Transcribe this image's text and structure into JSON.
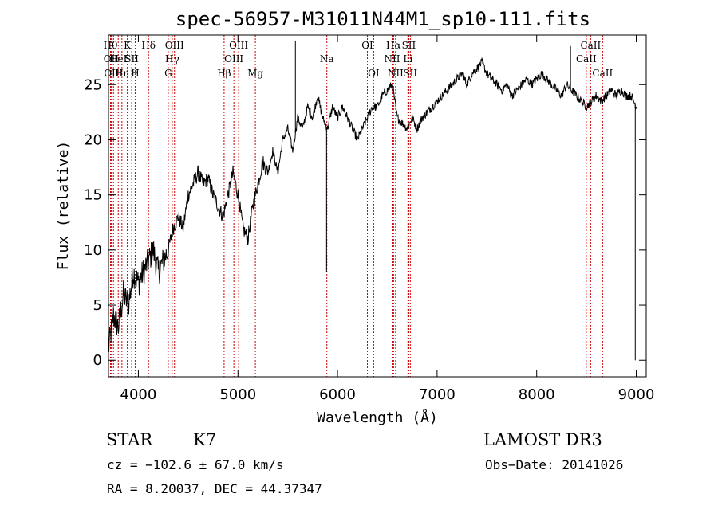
{
  "chart_data": {
    "type": "line",
    "title": "spec-56957-M31011N44M1_sp10-111.fits",
    "xlabel": "Wavelength (Å)",
    "ylabel": "Flux (relative)",
    "xlim": [
      3700,
      9100
    ],
    "ylim": [
      -1.5,
      29.5
    ],
    "xticks": [
      4000,
      5000,
      6000,
      7000,
      8000,
      9000
    ],
    "yticks": [
      0,
      5,
      10,
      15,
      20,
      25
    ],
    "series": [
      {
        "name": "flux",
        "x": [
          3700,
          3750,
          3800,
          3850,
          3900,
          3950,
          4000,
          4050,
          4100,
          4150,
          4200,
          4250,
          4300,
          4350,
          4400,
          4450,
          4500,
          4550,
          4600,
          4650,
          4700,
          4750,
          4800,
          4850,
          4900,
          4950,
          5000,
          5050,
          5100,
          5150,
          5200,
          5250,
          5300,
          5350,
          5400,
          5450,
          5500,
          5550,
          5600,
          5650,
          5700,
          5750,
          5800,
          5850,
          5900,
          5950,
          6000,
          6050,
          6100,
          6150,
          6200,
          6250,
          6300,
          6350,
          6400,
          6450,
          6500,
          6550,
          6600,
          6650,
          6700,
          6750,
          6800,
          6850,
          6900,
          6950,
          7000,
          7050,
          7100,
          7150,
          7200,
          7250,
          7300,
          7350,
          7400,
          7450,
          7500,
          7550,
          7600,
          7650,
          7700,
          7750,
          7800,
          7850,
          7900,
          7950,
          8000,
          8050,
          8100,
          8150,
          8200,
          8250,
          8300,
          8350,
          8400,
          8450,
          8500,
          8550,
          8600,
          8650,
          8700,
          8750,
          8800,
          8850,
          8900,
          8950,
          9000
        ],
        "y": [
          1,
          4,
          3,
          6,
          5,
          8,
          7,
          8,
          9,
          10,
          8,
          9,
          10,
          12,
          13,
          12,
          15,
          16,
          17,
          16,
          16.5,
          15,
          14,
          13,
          15,
          17,
          15,
          12,
          11,
          14,
          16,
          18,
          17,
          19,
          17,
          20,
          21,
          19,
          22,
          21,
          23,
          22,
          24,
          22,
          21,
          23,
          22,
          23,
          22,
          21,
          20,
          21,
          22,
          23,
          23,
          24,
          24.5,
          25,
          22,
          21.5,
          21,
          22,
          21,
          22,
          22.5,
          23,
          23.5,
          24,
          24.5,
          25,
          25.5,
          26,
          25,
          26,
          26.5,
          27,
          26,
          25.5,
          25,
          24.5,
          25,
          24,
          24.5,
          25,
          25.5,
          25,
          25.5,
          26,
          25.5,
          25,
          24.5,
          24,
          25,
          24.5,
          24,
          23.5,
          23,
          23.5,
          24,
          23.5,
          24,
          24.5,
          24,
          24.5,
          24,
          24,
          23
        ]
      }
    ],
    "spikes": [
      {
        "x": 5577,
        "y": 29
      },
      {
        "x": 5890,
        "y": 8
      },
      {
        "x": 8340,
        "y": 28.5
      },
      {
        "x": 8990,
        "y": 0
      }
    ],
    "lines": [
      {
        "x": 3720,
        "row": 1,
        "label": "Hθ"
      },
      {
        "x": 3727,
        "row": 2,
        "label": "OII"
      },
      {
        "x": 3750,
        "row": 3,
        "label": "OIII"
      },
      {
        "x": 3798,
        "row": 2,
        "label": "HeI"
      },
      {
        "x": 3835,
        "row": 3,
        "label": "Hη"
      },
      {
        "x": 3889,
        "row": 1,
        "label": "K"
      },
      {
        "x": 3933,
        "row": 2,
        "label": "SII"
      },
      {
        "x": 3968,
        "row": 3,
        "label": "H"
      },
      {
        "x": 4102,
        "row": 1,
        "label": "Hδ"
      },
      {
        "x": 4300,
        "row": 3,
        "label": "G"
      },
      {
        "x": 4340,
        "row": 2,
        "label": "Hγ"
      },
      {
        "x": 4363,
        "row": 1,
        "label": "OIII"
      },
      {
        "x": 4861,
        "row": 3,
        "label": "Hβ"
      },
      {
        "x": 4959,
        "row": 2,
        "label": "OIII"
      },
      {
        "x": 5007,
        "row": 1,
        "label": "OIII"
      },
      {
        "x": 5175,
        "row": 3,
        "label": "Mg"
      },
      {
        "x": 5893,
        "row": 2,
        "label": "Na"
      },
      {
        "x": 6300,
        "row": 1,
        "label": "OI"
      },
      {
        "x": 6363,
        "row": 3,
        "label": "OI"
      },
      {
        "x": 6548,
        "row": 2,
        "label": "NII"
      },
      {
        "x": 6563,
        "row": 1,
        "label": "Hα"
      },
      {
        "x": 6583,
        "row": 3,
        "label": "NII"
      },
      {
        "x": 6707,
        "row": 2,
        "label": "Li"
      },
      {
        "x": 6716,
        "row": 1,
        "label": "SII"
      },
      {
        "x": 6731,
        "row": 3,
        "label": "SII"
      },
      {
        "x": 8498,
        "row": 2,
        "label": "CaII"
      },
      {
        "x": 8542,
        "row": 1,
        "label": "CaII"
      },
      {
        "x": 8662,
        "row": 3,
        "label": "CaII"
      }
    ]
  },
  "info": {
    "class": "STAR",
    "subclass": "K7",
    "survey": "LAMOST DR3",
    "cz": "cz = −102.6 ± 67.0 km/s",
    "obs_date": "Obs−Date: 20141026",
    "coords": "RA =   8.20037, DEC =  44.37347"
  }
}
